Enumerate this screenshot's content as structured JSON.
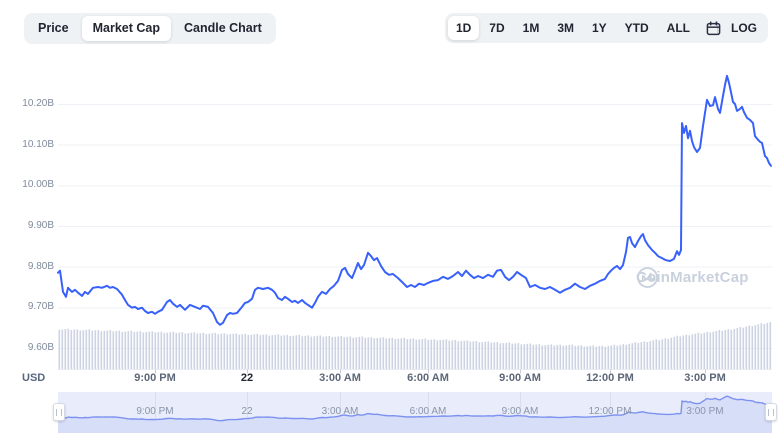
{
  "toolbar_left": {
    "items": [
      {
        "label": "Price",
        "selected": false
      },
      {
        "label": "Market Cap",
        "selected": true
      },
      {
        "label": "Candle Chart",
        "selected": false
      }
    ]
  },
  "toolbar_right": {
    "ranges": [
      {
        "label": "1D",
        "selected": true
      },
      {
        "label": "7D",
        "selected": false
      },
      {
        "label": "1M",
        "selected": false
      },
      {
        "label": "3M",
        "selected": false
      },
      {
        "label": "1Y",
        "selected": false
      },
      {
        "label": "YTD",
        "selected": false
      },
      {
        "label": "ALL",
        "selected": false
      }
    ],
    "calendar_icon": "calendar-icon",
    "log_label": "LOG"
  },
  "watermark": {
    "label": "CoinMarketCap"
  },
  "colors": {
    "accent": "#3861fb",
    "grid": "#eef1f6",
    "tick": "#c8cfdb",
    "volume": "#ccd3e2",
    "brush_bg": "#e8ecfb",
    "brush_area": "#d7def7",
    "brush_line": "#7d92f0",
    "brush_grid": "#d8ddf0",
    "watermark": "#c9d1dd"
  },
  "chart_data": {
    "type": "line",
    "unit": "USD",
    "ylim": [
      9.55,
      10.3
    ],
    "y_ticks": [
      {
        "label": "10.20B",
        "value": 10.2
      },
      {
        "label": "10.10B",
        "value": 10.1
      },
      {
        "label": "10.00B",
        "value": 10.0
      },
      {
        "label": "9.90B",
        "value": 9.9
      },
      {
        "label": "9.80B",
        "value": 9.8
      },
      {
        "label": "9.70B",
        "value": 9.7
      },
      {
        "label": "9.60B",
        "value": 9.6
      }
    ],
    "x_ticks": [
      {
        "label": "9:00 PM",
        "px": 97,
        "bold": false
      },
      {
        "label": "22",
        "px": 189,
        "bold": true
      },
      {
        "label": "3:00 AM",
        "px": 282,
        "bold": false
      },
      {
        "label": "6:00 AM",
        "px": 370,
        "bold": false
      },
      {
        "label": "9:00 AM",
        "px": 462,
        "bold": false
      },
      {
        "label": "12:00 PM",
        "px": 552,
        "bold": false
      },
      {
        "label": "3:00 PM",
        "px": 647,
        "bold": false
      }
    ],
    "series": [
      {
        "name": "Market Cap",
        "color": "#3861fb",
        "points": [
          [
            0,
            9.785
          ],
          [
            2,
            9.79
          ],
          [
            5,
            9.738
          ],
          [
            8,
            9.726
          ],
          [
            10,
            9.748
          ],
          [
            14,
            9.738
          ],
          [
            17,
            9.743
          ],
          [
            20,
            9.736
          ],
          [
            24,
            9.728
          ],
          [
            27,
            9.738
          ],
          [
            30,
            9.733
          ],
          [
            35,
            9.748
          ],
          [
            40,
            9.75
          ],
          [
            44,
            9.748
          ],
          [
            49,
            9.753
          ],
          [
            52,
            9.748
          ],
          [
            55,
            9.75
          ],
          [
            59,
            9.745
          ],
          [
            64,
            9.731
          ],
          [
            67,
            9.718
          ],
          [
            70,
            9.706
          ],
          [
            74,
            9.699
          ],
          [
            77,
            9.701
          ],
          [
            80,
            9.696
          ],
          [
            84,
            9.699
          ],
          [
            87,
            9.691
          ],
          [
            90,
            9.686
          ],
          [
            94,
            9.689
          ],
          [
            97,
            9.684
          ],
          [
            100,
            9.689
          ],
          [
            104,
            9.694
          ],
          [
            109,
            9.713
          ],
          [
            112,
            9.718
          ],
          [
            115,
            9.709
          ],
          [
            119,
            9.701
          ],
          [
            122,
            9.706
          ],
          [
            127,
            9.694
          ],
          [
            132,
            9.706
          ],
          [
            137,
            9.701
          ],
          [
            142,
            9.696
          ],
          [
            145,
            9.704
          ],
          [
            150,
            9.701
          ],
          [
            155,
            9.686
          ],
          [
            159,
            9.664
          ],
          [
            162,
            9.657
          ],
          [
            165,
            9.662
          ],
          [
            169,
            9.681
          ],
          [
            172,
            9.686
          ],
          [
            175,
            9.684
          ],
          [
            179,
            9.686
          ],
          [
            184,
            9.701
          ],
          [
            187,
            9.711
          ],
          [
            190,
            9.713
          ],
          [
            194,
            9.721
          ],
          [
            197,
            9.743
          ],
          [
            200,
            9.748
          ],
          [
            205,
            9.745
          ],
          [
            210,
            9.748
          ],
          [
            214,
            9.743
          ],
          [
            217,
            9.736
          ],
          [
            220,
            9.723
          ],
          [
            224,
            9.718
          ],
          [
            227,
            9.726
          ],
          [
            230,
            9.721
          ],
          [
            234,
            9.713
          ],
          [
            237,
            9.716
          ],
          [
            240,
            9.711
          ],
          [
            244,
            9.718
          ],
          [
            247,
            9.711
          ],
          [
            250,
            9.706
          ],
          [
            254,
            9.699
          ],
          [
            257,
            9.711
          ],
          [
            260,
            9.726
          ],
          [
            264,
            9.738
          ],
          [
            268,
            9.733
          ],
          [
            272,
            9.745
          ],
          [
            276,
            9.753
          ],
          [
            280,
            9.765
          ],
          [
            284,
            9.792
          ],
          [
            287,
            9.797
          ],
          [
            290,
            9.782
          ],
          [
            294,
            9.772
          ],
          [
            297,
            9.79
          ],
          [
            300,
            9.809
          ],
          [
            303,
            9.794
          ],
          [
            306,
            9.804
          ],
          [
            310,
            9.834
          ],
          [
            313,
            9.826
          ],
          [
            316,
            9.816
          ],
          [
            319,
            9.821
          ],
          [
            323,
            9.802
          ],
          [
            327,
            9.787
          ],
          [
            331,
            9.78
          ],
          [
            335,
            9.782
          ],
          [
            340,
            9.772
          ],
          [
            345,
            9.76
          ],
          [
            349,
            9.75
          ],
          [
            353,
            9.755
          ],
          [
            357,
            9.75
          ],
          [
            361,
            9.758
          ],
          [
            366,
            9.755
          ],
          [
            370,
            9.76
          ],
          [
            375,
            9.765
          ],
          [
            380,
            9.767
          ],
          [
            385,
            9.775
          ],
          [
            390,
            9.77
          ],
          [
            395,
            9.777
          ],
          [
            400,
            9.787
          ],
          [
            404,
            9.777
          ],
          [
            408,
            9.79
          ],
          [
            412,
            9.78
          ],
          [
            416,
            9.772
          ],
          [
            420,
            9.777
          ],
          [
            425,
            9.772
          ],
          [
            430,
            9.78
          ],
          [
            435,
            9.775
          ],
          [
            439,
            9.79
          ],
          [
            443,
            9.792
          ],
          [
            447,
            9.775
          ],
          [
            451,
            9.767
          ],
          [
            455,
            9.775
          ],
          [
            459,
            9.787
          ],
          [
            463,
            9.78
          ],
          [
            468,
            9.772
          ],
          [
            472,
            9.75
          ],
          [
            477,
            9.755
          ],
          [
            482,
            9.748
          ],
          [
            487,
            9.745
          ],
          [
            492,
            9.75
          ],
          [
            497,
            9.743
          ],
          [
            502,
            9.736
          ],
          [
            507,
            9.743
          ],
          [
            512,
            9.748
          ],
          [
            517,
            9.758
          ],
          [
            522,
            9.75
          ],
          [
            527,
            9.745
          ],
          [
            532,
            9.753
          ],
          [
            537,
            9.758
          ],
          [
            542,
            9.765
          ],
          [
            547,
            9.77
          ],
          [
            550,
            9.782
          ],
          [
            553,
            9.79
          ],
          [
            556,
            9.797
          ],
          [
            559,
            9.802
          ],
          [
            562,
            9.794
          ],
          [
            565,
            9.804
          ],
          [
            568,
            9.836
          ],
          [
            570,
            9.871
          ],
          [
            572,
            9.873
          ],
          [
            574,
            9.858
          ],
          [
            577,
            9.848
          ],
          [
            580,
            9.863
          ],
          [
            583,
            9.875
          ],
          [
            585,
            9.88
          ],
          [
            587,
            9.865
          ],
          [
            590,
            9.853
          ],
          [
            594,
            9.841
          ],
          [
            597,
            9.834
          ],
          [
            600,
            9.826
          ],
          [
            604,
            9.821
          ],
          [
            608,
            9.816
          ],
          [
            612,
            9.814
          ],
          [
            616,
            9.819
          ],
          [
            619,
            9.838
          ],
          [
            621,
            9.829
          ],
          [
            623,
            9.841
          ],
          [
            624,
            10.153
          ],
          [
            626,
            10.129
          ],
          [
            628,
            10.146
          ],
          [
            630,
            10.116
          ],
          [
            632,
            10.134
          ],
          [
            634,
            10.109
          ],
          [
            636,
            10.094
          ],
          [
            639,
            10.082
          ],
          [
            642,
            10.092
          ],
          [
            645,
            10.146
          ],
          [
            647,
            10.178
          ],
          [
            649,
            10.21
          ],
          [
            652,
            10.195
          ],
          [
            655,
            10.197
          ],
          [
            657,
            10.217
          ],
          [
            660,
            10.188
          ],
          [
            662,
            10.178
          ],
          [
            665,
            10.22
          ],
          [
            667,
            10.247
          ],
          [
            669,
            10.269
          ],
          [
            671,
            10.252
          ],
          [
            673,
            10.229
          ],
          [
            675,
            10.205
          ],
          [
            677,
            10.2
          ],
          [
            679,
            10.183
          ],
          [
            682,
            10.188
          ],
          [
            684,
            10.193
          ],
          [
            686,
            10.18
          ],
          [
            689,
            10.166
          ],
          [
            692,
            10.161
          ],
          [
            695,
            10.153
          ],
          [
            697,
            10.121
          ],
          [
            700,
            10.112
          ],
          [
            702,
            10.107
          ],
          [
            704,
            10.104
          ],
          [
            707,
            10.072
          ],
          [
            709,
            10.067
          ],
          [
            711,
            10.055
          ],
          [
            713,
            10.048
          ]
        ]
      }
    ],
    "volume": {
      "color": "#ccd3e2",
      "profile": [
        [
          0,
          40
        ],
        [
          30,
          39
        ],
        [
          60,
          38
        ],
        [
          100,
          37
        ],
        [
          140,
          36
        ],
        [
          180,
          35
        ],
        [
          220,
          34
        ],
        [
          260,
          33
        ],
        [
          300,
          32
        ],
        [
          330,
          31
        ],
        [
          360,
          30
        ],
        [
          390,
          29
        ],
        [
          410,
          28
        ],
        [
          430,
          27
        ],
        [
          450,
          26
        ],
        [
          470,
          25
        ],
        [
          490,
          24
        ],
        [
          510,
          24
        ],
        [
          530,
          23
        ],
        [
          545,
          23
        ],
        [
          560,
          24
        ],
        [
          575,
          26
        ],
        [
          590,
          28
        ],
        [
          605,
          30
        ],
        [
          620,
          33
        ],
        [
          635,
          35
        ],
        [
          650,
          37
        ],
        [
          665,
          39
        ],
        [
          680,
          41
        ],
        [
          695,
          44
        ],
        [
          714,
          47
        ]
      ]
    }
  }
}
